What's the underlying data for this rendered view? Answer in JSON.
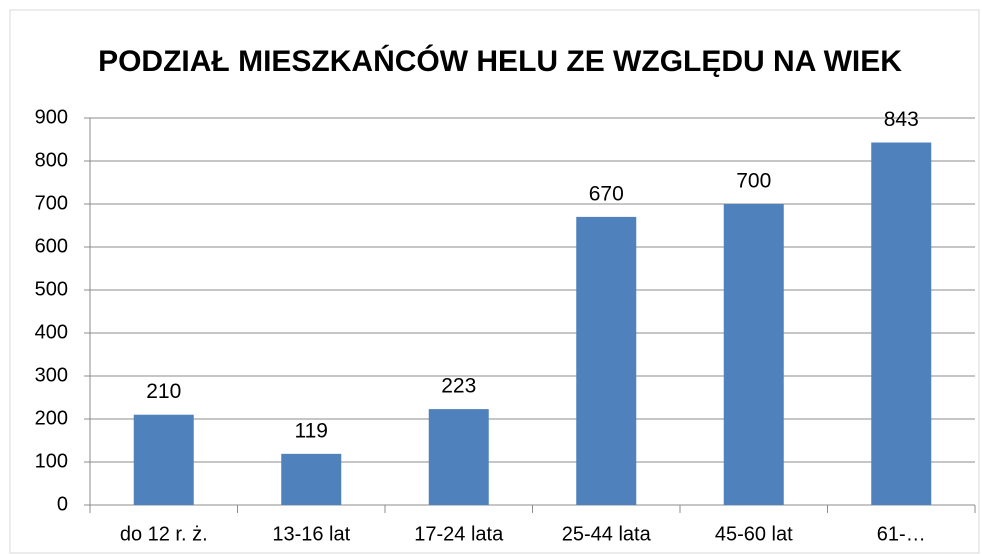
{
  "chart_data": {
    "type": "bar",
    "title": "PODZIAŁ MIESZKAŃCÓW HELU ZE WZGLĘDU NA WIEK",
    "categories": [
      "do 12 r. ż.",
      "13-16 lat",
      "17-24 lata",
      "25-44 lata",
      "45-60 lat",
      "61-…"
    ],
    "values": [
      210,
      119,
      223,
      670,
      700,
      843
    ],
    "color": "#4f81bd",
    "ylim": [
      0,
      900
    ],
    "yticks": [
      0,
      100,
      200,
      300,
      400,
      500,
      600,
      700,
      800,
      900
    ],
    "grid": true
  }
}
